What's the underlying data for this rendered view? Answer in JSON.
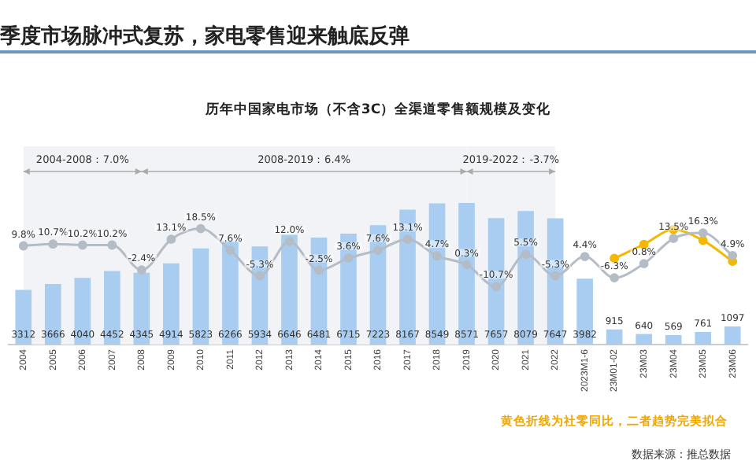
{
  "chart_data": {
    "type": "bar",
    "title": "季度市场脉冲式复苏，家电零售迎来触底反弹",
    "subtitle": "历年中国家电市场（不含3C）全渠道零售额规模及变化",
    "categories": [
      "2004",
      "2005",
      "2006",
      "2007",
      "2008",
      "2009",
      "2010",
      "2011",
      "2012",
      "2013",
      "2014",
      "2015",
      "2016",
      "2017",
      "2018",
      "2019",
      "2020",
      "2021",
      "2022",
      "2023M1-6",
      "23M01-02",
      "23M03",
      "23M04",
      "23M05",
      "23M06"
    ],
    "series": [
      {
        "type": "bar",
        "color": "#a8cdf0",
        "values": [
          3312,
          3666,
          4040,
          4452,
          4345,
          4914,
          5823,
          6266,
          5934,
          6646,
          6481,
          6715,
          7223,
          8167,
          8549,
          8571,
          7657,
          8079,
          7647,
          3982,
          915,
          640,
          569,
          761,
          1097
        ],
        "value_labels": [
          "3312",
          "3666",
          "4040",
          "4452",
          "4345",
          "4914",
          "5823",
          "6266",
          "5934",
          "6646",
          "6481",
          "6715",
          "7223",
          "8167",
          "8549",
          "8571",
          "7657",
          "8079",
          "7647",
          "3982",
          "915",
          "640",
          "569",
          "761",
          "1097"
        ]
      },
      {
        "type": "line",
        "axis": "y2",
        "color": "#b4bcc6",
        "values": [
          9.8,
          10.7,
          10.2,
          10.2,
          -2.4,
          13.1,
          18.5,
          7.6,
          -5.3,
          12.0,
          -2.5,
          3.6,
          7.6,
          13.1,
          4.7,
          0.3,
          -10.7,
          5.5,
          -5.3,
          4.4,
          -6.3,
          0.8,
          13.5,
          16.3,
          4.9
        ],
        "value_labels": [
          "9.8%",
          "10.7%",
          "10.2%",
          "10.2%",
          "-2.4%",
          "13.1%",
          "18.5%",
          "7.6%",
          "-5.3%",
          "12.0%",
          "-2.5%",
          "3.6%",
          "7.6%",
          "13.1%",
          "4.7%",
          "0.3%",
          "-10.7%",
          "5.5%",
          "-5.3%",
          "4.4%",
          "-6.3%",
          "0.8%",
          "13.5%",
          "16.3%",
          "4.9%"
        ]
      },
      {
        "type": "line",
        "axis": "y2",
        "color": "#f5b800",
        "values": [
          null,
          null,
          null,
          null,
          null,
          null,
          null,
          null,
          null,
          null,
          null,
          null,
          null,
          null,
          null,
          null,
          null,
          null,
          null,
          null,
          3.5,
          10.5,
          18,
          12.5,
          2
        ]
      }
    ],
    "tick_labels": "x",
    "marker": "circle",
    "legend": false,
    "grid": false,
    "bands": [
      {
        "axis": "x",
        "from": "2004",
        "to": "2008",
        "label": "2004-2008：7.0%",
        "color": "#f1f3f6"
      },
      {
        "axis": "x",
        "from": "2008",
        "to": "2019",
        "label": "2008-2019：6.4%",
        "color": "#f1f3f6"
      },
      {
        "axis": "x",
        "from": "2019",
        "to": "2022",
        "label": "2019-2022：-3.7%",
        "color": "#f1f3f6"
      }
    ],
    "annotations": [
      "黄色折线为社零同比，二者趋势完美拟合",
      "数据来源：推总数据"
    ]
  }
}
